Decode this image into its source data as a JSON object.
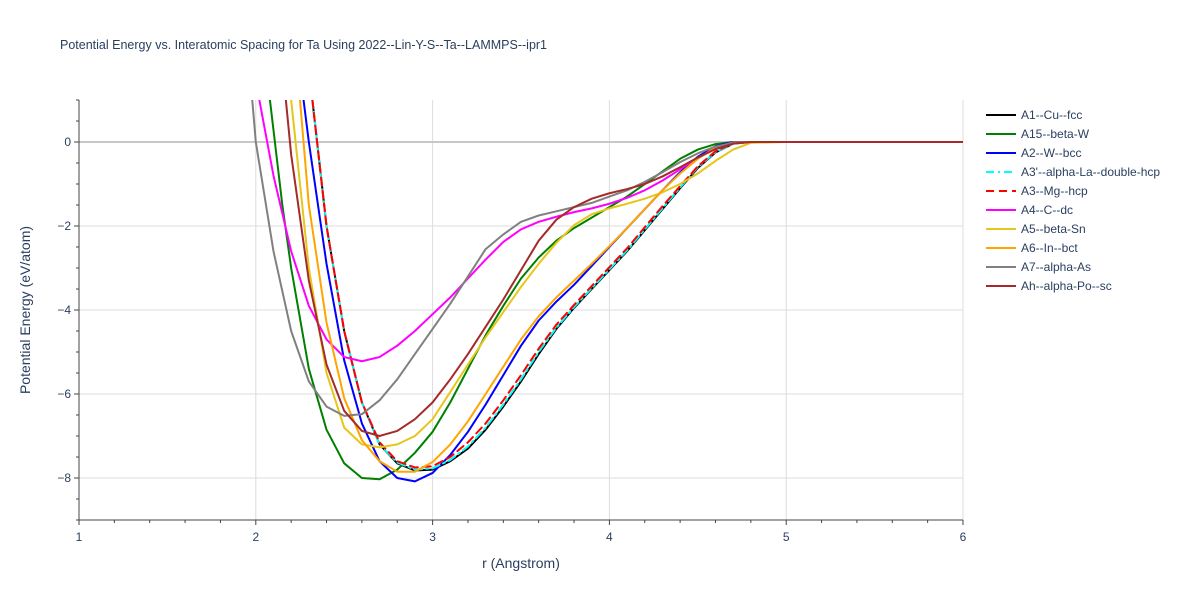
{
  "chart_data": {
    "type": "line",
    "title": "Potential Energy vs. Interatomic Spacing for Ta Using 2022--Lin-Y-S--Ta--LAMMPS--ipr1",
    "xlabel": "r (Angstrom)",
    "ylabel": "Potential Energy (eV/atom)",
    "xlim": [
      1,
      6
    ],
    "ylim": [
      -9,
      1
    ],
    "xticks": [
      1,
      2,
      3,
      4,
      5,
      6
    ],
    "xtick_labels": [
      "1",
      "2",
      "3",
      "4",
      "5",
      "6"
    ],
    "yticks": [
      0,
      -2,
      -4,
      -6,
      -8
    ],
    "ytick_labels": [
      "0",
      "−2",
      "−4",
      "−6",
      "−8"
    ],
    "grid": true,
    "legend_position": "right",
    "series": [
      {
        "name": "A1--Cu--fcc",
        "color": "#000000",
        "dash": "solid",
        "x": [
          2.32,
          2.4,
          2.5,
          2.6,
          2.7,
          2.8,
          2.9,
          3.0,
          3.1,
          3.2,
          3.3,
          3.4,
          3.5,
          3.6,
          3.7,
          3.8,
          3.9,
          4.0,
          4.1,
          4.2,
          4.3,
          4.4,
          4.5,
          4.6,
          4.7,
          4.8,
          5.0,
          5.5,
          6.0
        ],
        "y": [
          1.0,
          -2.0,
          -4.5,
          -6.2,
          -7.2,
          -7.65,
          -7.82,
          -7.8,
          -7.6,
          -7.3,
          -6.85,
          -6.3,
          -5.7,
          -5.05,
          -4.45,
          -3.95,
          -3.5,
          -3.05,
          -2.6,
          -2.1,
          -1.6,
          -1.1,
          -0.62,
          -0.25,
          -0.04,
          0.0,
          0.0,
          0.0,
          0.0
        ]
      },
      {
        "name": "A15--beta-W",
        "color": "#008000",
        "dash": "solid",
        "x": [
          2.08,
          2.15,
          2.2,
          2.3,
          2.4,
          2.5,
          2.6,
          2.7,
          2.8,
          2.9,
          3.0,
          3.1,
          3.2,
          3.3,
          3.4,
          3.5,
          3.6,
          3.7,
          3.8,
          3.9,
          4.0,
          4.1,
          4.2,
          4.3,
          4.4,
          4.5,
          4.6,
          4.7,
          4.8,
          5.0,
          5.5,
          6.0
        ],
        "y": [
          1.0,
          -1.5,
          -3.0,
          -5.4,
          -6.85,
          -7.65,
          -8.0,
          -8.03,
          -7.8,
          -7.4,
          -6.9,
          -6.2,
          -5.4,
          -4.6,
          -3.9,
          -3.25,
          -2.75,
          -2.35,
          -2.05,
          -1.8,
          -1.55,
          -1.3,
          -1.0,
          -0.7,
          -0.4,
          -0.18,
          -0.05,
          0.0,
          0.0,
          0.0,
          0.0,
          0.0
        ]
      },
      {
        "name": "A2--W--bcc",
        "color": "#0000ff",
        "dash": "solid",
        "x": [
          2.27,
          2.3,
          2.4,
          2.5,
          2.6,
          2.7,
          2.8,
          2.9,
          3.0,
          3.1,
          3.2,
          3.3,
          3.4,
          3.5,
          3.6,
          3.7,
          3.8,
          3.9,
          4.0,
          4.1,
          4.2,
          4.3,
          4.4,
          4.5,
          4.6,
          4.7,
          4.8,
          5.0,
          5.5,
          6.0
        ],
        "y": [
          1.0,
          0.0,
          -2.9,
          -5.2,
          -6.7,
          -7.6,
          -8.0,
          -8.08,
          -7.88,
          -7.45,
          -6.9,
          -6.25,
          -5.55,
          -4.85,
          -4.25,
          -3.8,
          -3.4,
          -2.95,
          -2.5,
          -2.05,
          -1.6,
          -1.15,
          -0.72,
          -0.35,
          -0.1,
          0.0,
          0.0,
          0.0,
          0.0,
          0.0
        ]
      },
      {
        "name": "A3'--alpha-La--double-hcp",
        "color": "#00ffff",
        "dash": "dashdot",
        "x": [
          2.32,
          2.4,
          2.5,
          2.6,
          2.7,
          2.8,
          2.9,
          3.0,
          3.1,
          3.2,
          3.3,
          3.4,
          3.5,
          3.6,
          3.7,
          3.8,
          3.9,
          4.0,
          4.1,
          4.2,
          4.3,
          4.4,
          4.5,
          4.6,
          4.7,
          4.8,
          5.0,
          5.5,
          6.0
        ],
        "y": [
          1.0,
          -2.0,
          -4.5,
          -6.2,
          -7.2,
          -7.63,
          -7.8,
          -7.77,
          -7.57,
          -7.25,
          -6.8,
          -6.25,
          -5.65,
          -5.0,
          -4.42,
          -3.93,
          -3.48,
          -3.03,
          -2.58,
          -2.08,
          -1.58,
          -1.08,
          -0.6,
          -0.24,
          -0.04,
          0.0,
          0.0,
          0.0,
          0.0
        ]
      },
      {
        "name": "A3--Mg--hcp",
        "color": "#ff0000",
        "dash": "dash",
        "x": [
          2.32,
          2.4,
          2.5,
          2.6,
          2.7,
          2.8,
          2.9,
          3.0,
          3.1,
          3.2,
          3.3,
          3.4,
          3.5,
          3.6,
          3.7,
          3.8,
          3.9,
          4.0,
          4.1,
          4.2,
          4.3,
          4.4,
          4.5,
          4.6,
          4.7,
          4.8,
          5.0,
          5.5,
          6.0
        ],
        "y": [
          1.0,
          -2.0,
          -4.5,
          -6.2,
          -7.15,
          -7.6,
          -7.75,
          -7.72,
          -7.5,
          -7.15,
          -6.7,
          -6.15,
          -5.55,
          -4.92,
          -4.35,
          -3.88,
          -3.43,
          -2.98,
          -2.53,
          -2.03,
          -1.53,
          -1.05,
          -0.58,
          -0.22,
          -0.03,
          0.0,
          0.0,
          0.0,
          0.0
        ]
      },
      {
        "name": "A4--C--dc",
        "color": "#ff00ff",
        "dash": "solid",
        "x": [
          2.02,
          2.1,
          2.2,
          2.3,
          2.4,
          2.5,
          2.6,
          2.7,
          2.8,
          2.9,
          3.0,
          3.1,
          3.2,
          3.3,
          3.4,
          3.5,
          3.6,
          3.7,
          3.8,
          3.9,
          4.0,
          4.1,
          4.2,
          4.3,
          4.4,
          4.5,
          4.6,
          4.7,
          4.8,
          5.0,
          5.5,
          6.0
        ],
        "y": [
          1.0,
          -0.8,
          -2.6,
          -3.9,
          -4.7,
          -5.12,
          -5.22,
          -5.12,
          -4.85,
          -4.5,
          -4.1,
          -3.7,
          -3.25,
          -2.8,
          -2.38,
          -2.08,
          -1.9,
          -1.78,
          -1.67,
          -1.58,
          -1.47,
          -1.33,
          -1.15,
          -0.92,
          -0.65,
          -0.38,
          -0.15,
          -0.03,
          0.0,
          0.0,
          0.0,
          0.0
        ]
      },
      {
        "name": "A5--beta-Sn",
        "color": "#e6c619",
        "dash": "solid",
        "x": [
          2.2,
          2.3,
          2.4,
          2.5,
          2.6,
          2.7,
          2.8,
          2.9,
          3.0,
          3.1,
          3.2,
          3.3,
          3.4,
          3.5,
          3.6,
          3.7,
          3.8,
          3.9,
          4.0,
          4.1,
          4.2,
          4.3,
          4.4,
          4.5,
          4.6,
          4.7,
          4.8,
          5.0,
          5.5,
          6.0
        ],
        "y": [
          1.0,
          -3.0,
          -5.5,
          -6.8,
          -7.2,
          -7.27,
          -7.2,
          -7.0,
          -6.6,
          -5.95,
          -5.3,
          -4.65,
          -4.05,
          -3.45,
          -2.9,
          -2.4,
          -1.98,
          -1.72,
          -1.58,
          -1.47,
          -1.35,
          -1.2,
          -1.0,
          -0.75,
          -0.45,
          -0.18,
          -0.02,
          0.0,
          0.0,
          0.0
        ]
      },
      {
        "name": "A6--In--bct",
        "color": "#ffa500",
        "dash": "solid",
        "x": [
          2.25,
          2.3,
          2.4,
          2.5,
          2.6,
          2.7,
          2.8,
          2.9,
          3.0,
          3.1,
          3.2,
          3.3,
          3.4,
          3.5,
          3.6,
          3.7,
          3.8,
          3.9,
          4.0,
          4.1,
          4.2,
          4.3,
          4.4,
          4.5,
          4.6,
          4.7,
          4.8,
          5.0,
          5.5,
          6.0
        ],
        "y": [
          1.0,
          -1.5,
          -4.3,
          -6.1,
          -7.1,
          -7.6,
          -7.85,
          -7.85,
          -7.62,
          -7.2,
          -6.65,
          -6.0,
          -5.35,
          -4.7,
          -4.15,
          -3.7,
          -3.3,
          -2.9,
          -2.48,
          -2.05,
          -1.6,
          -1.15,
          -0.75,
          -0.4,
          -0.13,
          -0.01,
          0.0,
          0.0,
          0.0,
          0.0
        ]
      },
      {
        "name": "A7--alpha-As",
        "color": "#808080",
        "dash": "solid",
        "x": [
          1.98,
          2.0,
          2.1,
          2.2,
          2.3,
          2.4,
          2.5,
          2.6,
          2.7,
          2.8,
          2.9,
          3.0,
          3.1,
          3.2,
          3.3,
          3.4,
          3.5,
          3.6,
          3.7,
          3.8,
          3.9,
          4.0,
          4.1,
          4.2,
          4.3,
          4.4,
          4.5,
          4.6,
          4.7,
          4.8,
          5.0,
          5.5,
          6.0
        ],
        "y": [
          1.0,
          0.0,
          -2.6,
          -4.5,
          -5.7,
          -6.3,
          -6.52,
          -6.48,
          -6.15,
          -5.65,
          -5.05,
          -4.45,
          -3.85,
          -3.2,
          -2.55,
          -2.2,
          -1.9,
          -1.75,
          -1.65,
          -1.55,
          -1.45,
          -1.3,
          -1.15,
          -0.95,
          -0.72,
          -0.48,
          -0.27,
          -0.11,
          -0.02,
          0.0,
          0.0,
          0.0,
          0.0
        ]
      },
      {
        "name": "Ah--alpha-Po--sc",
        "color": "#a52a2a",
        "dash": "solid",
        "x": [
          2.17,
          2.2,
          2.3,
          2.4,
          2.5,
          2.6,
          2.7,
          2.8,
          2.9,
          3.0,
          3.1,
          3.2,
          3.3,
          3.4,
          3.5,
          3.6,
          3.7,
          3.8,
          3.9,
          4.0,
          4.1,
          4.2,
          4.3,
          4.4,
          4.5,
          4.6,
          4.7,
          4.8,
          5.0,
          5.5,
          6.0
        ],
        "y": [
          1.0,
          -0.3,
          -3.3,
          -5.3,
          -6.4,
          -6.88,
          -7.0,
          -6.88,
          -6.6,
          -6.2,
          -5.65,
          -5.05,
          -4.4,
          -3.75,
          -3.05,
          -2.35,
          -1.85,
          -1.55,
          -1.35,
          -1.22,
          -1.12,
          -1.0,
          -0.82,
          -0.6,
          -0.37,
          -0.17,
          -0.04,
          0.0,
          0.0,
          0.0,
          0.0
        ]
      }
    ]
  }
}
